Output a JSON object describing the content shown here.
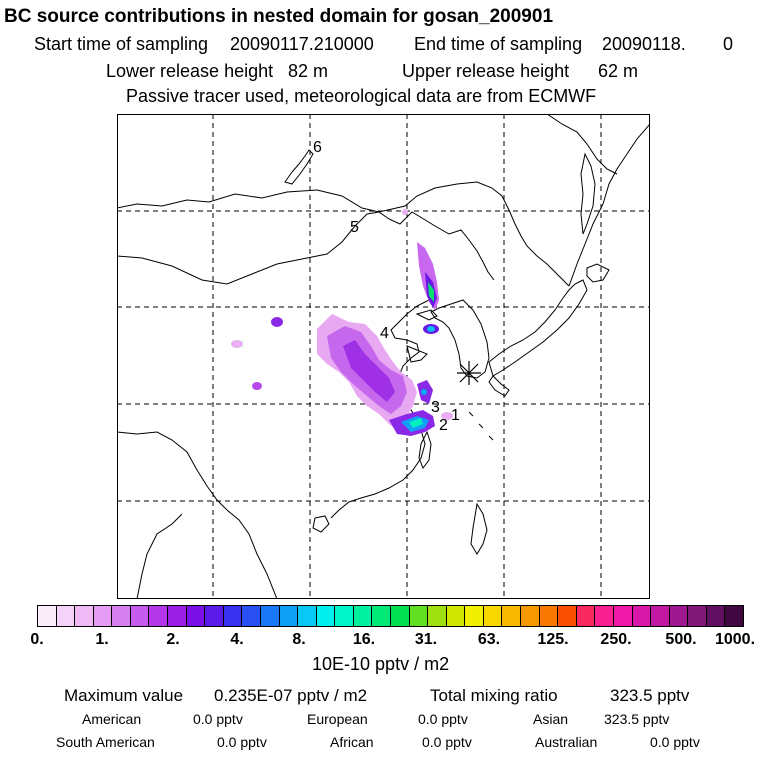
{
  "header": {
    "title": "BC  source contributions in nested domain for gosan_200901",
    "start_label": "Start time of sampling",
    "start_value": "20090117.210000",
    "end_label": "End time of sampling",
    "end_value": "20090118.",
    "end_extra": "0",
    "lower_label": "Lower release height",
    "lower_value": "82 m",
    "upper_label": "Upper release height",
    "upper_value": "62 m",
    "passive_note": "Passive tracer used, meteorological data are from ECMWF"
  },
  "map": {
    "region_labels": [
      "1",
      "2",
      "3",
      "4",
      "5",
      "6"
    ],
    "receptor": "gosan",
    "receptor_icon": "asterisk-icon"
  },
  "colorbar": {
    "colors": [
      "#fbeefb",
      "#f5d3f8",
      "#eeb9f5",
      "#e49df2",
      "#d67ff0",
      "#c65cee",
      "#b438ea",
      "#9a20e6",
      "#7a10e8",
      "#5a1ae8",
      "#3a30f0",
      "#2a50f4",
      "#1a78f6",
      "#10a0f8",
      "#08c8f8",
      "#00f0f0",
      "#00f6c8",
      "#00f0a0",
      "#00e878",
      "#00e050",
      "#60e020",
      "#a0e010",
      "#d0e800",
      "#f0f000",
      "#f8d800",
      "#f8b800",
      "#f89800",
      "#f87800",
      "#f85000",
      "#f82860",
      "#f82090",
      "#f018a8",
      "#d818a8",
      "#c018a0",
      "#a01890",
      "#801878",
      "#601060",
      "#400840"
    ],
    "ticks": [
      "0.",
      "1.",
      "2.",
      "4.",
      "8.",
      "16.",
      "31.",
      "63.",
      "125.",
      "250.",
      "500.",
      "1000."
    ],
    "unit": "10E-10 pptv / m2"
  },
  "summary": {
    "max_label": "Maximum value",
    "max_value": "0.235E-07 pptv / m2",
    "total_label": "Total mixing ratio",
    "total_value": "323.5 pptv",
    "rows": [
      [
        {
          "label": "American",
          "value": "0.0 pptv"
        },
        {
          "label": "European",
          "value": "0.0 pptv"
        },
        {
          "label": "Asian",
          "value": "323.5 pptv"
        }
      ],
      [
        {
          "label": "South American",
          "value": "0.0 pptv"
        },
        {
          "label": "African",
          "value": "0.0 pptv"
        },
        {
          "label": "Australian",
          "value": "0.0 pptv"
        }
      ]
    ]
  }
}
